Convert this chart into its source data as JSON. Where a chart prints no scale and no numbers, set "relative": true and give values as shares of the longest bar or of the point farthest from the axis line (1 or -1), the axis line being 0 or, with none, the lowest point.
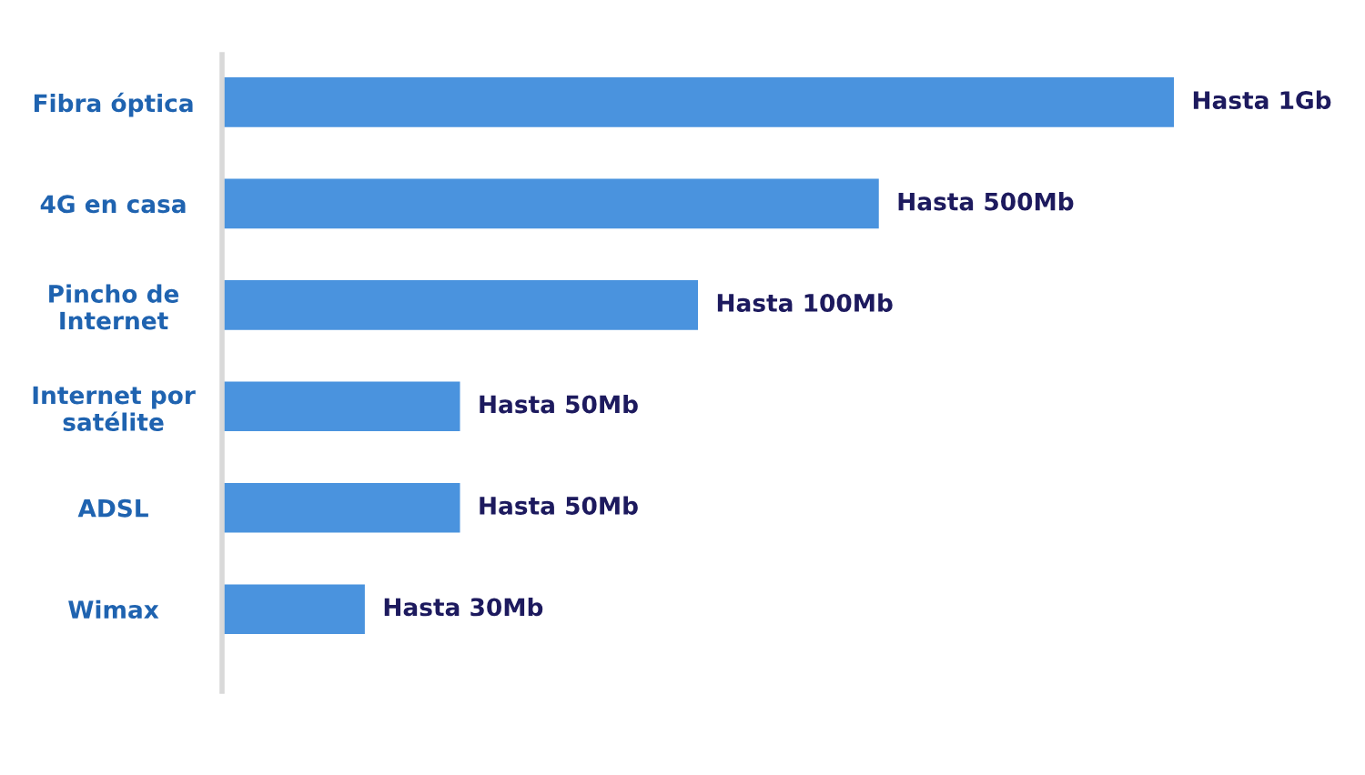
{
  "chart_data": {
    "type": "bar",
    "orientation": "horizontal",
    "relative": true,
    "categories": [
      "Fibra óptica",
      "4G en casa",
      "Pincho de\nInternet",
      "Internet por\nsatélite",
      "ADSL",
      "Wimax"
    ],
    "values": [
      1,
      0.69,
      0.5,
      0.25,
      0.25,
      0.15
    ],
    "color": "#4a93de",
    "annotations": [
      {
        "text": "Hasta 1Gb",
        "x": 1,
        "y": "Fibra óptica"
      },
      {
        "text": "Hasta 500Mb",
        "x": 0.69,
        "y": "4G en casa"
      },
      {
        "text": "Hasta 100Mb",
        "x": 0.5,
        "y": "Pincho de\nInternet"
      },
      {
        "text": "Hasta 50Mb",
        "x": 0.25,
        "y": "Internet por\nsatélite"
      },
      {
        "text": "Hasta 50Mb",
        "x": 0.25,
        "y": "ADSL"
      },
      {
        "text": "Hasta 30Mb",
        "x": 0.15,
        "y": "Wimax"
      }
    ]
  }
}
